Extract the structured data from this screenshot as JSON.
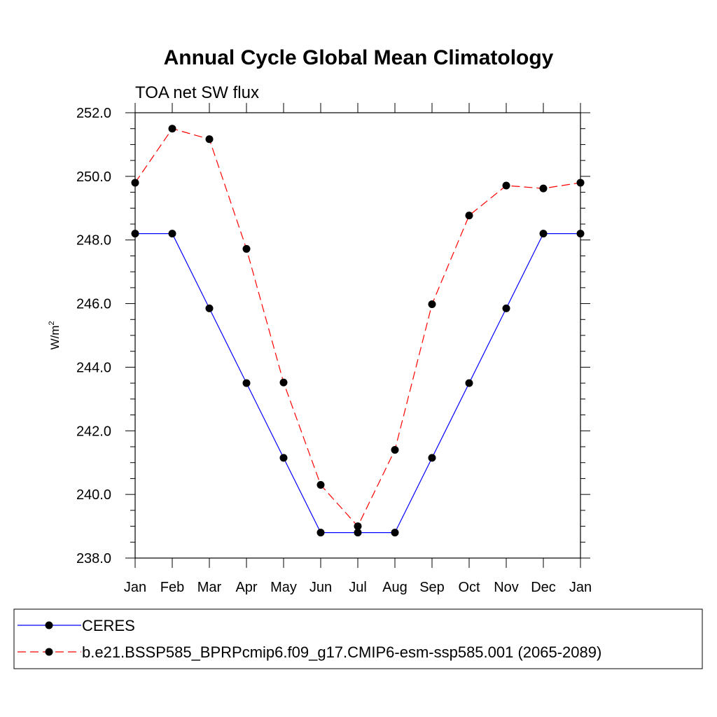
{
  "chart_data": {
    "type": "line",
    "title": "Annual Cycle Global Mean Climatology",
    "subtitle": "TOA net SW flux",
    "ylabel": "W/m",
    "ylabel_superscript": "2",
    "xlabel": "",
    "categories": [
      "Jan",
      "Feb",
      "Mar",
      "Apr",
      "May",
      "Jun",
      "Jul",
      "Aug",
      "Sep",
      "Oct",
      "Nov",
      "Dec",
      "Jan"
    ],
    "ylim": [
      238.0,
      252.0
    ],
    "yticks": [
      "252.0",
      "250.0",
      "248.0",
      "246.0",
      "244.0",
      "242.0",
      "240.0",
      "238.0"
    ],
    "grid": false,
    "legend_position": "bottom",
    "series": [
      {
        "name": "CERES",
        "color": "#0000ff",
        "dash": "solid",
        "marker": "filled-circle",
        "values": [
          248.2,
          248.2,
          245.85,
          243.5,
          241.15,
          238.8,
          238.8,
          238.8,
          241.15,
          243.5,
          245.85,
          248.2,
          248.2
        ]
      },
      {
        "name": "b.e21.BSSP585_BPRPcmip6.f09_g17.CMIP6-esm-ssp585.001 (2065-2089)",
        "color": "#ff0000",
        "dash": "dashed",
        "marker": "filled-circle",
        "values": [
          249.8,
          251.5,
          251.17,
          247.72,
          243.52,
          240.3,
          239.0,
          241.4,
          245.98,
          248.77,
          249.71,
          249.62,
          249.8
        ]
      }
    ]
  }
}
